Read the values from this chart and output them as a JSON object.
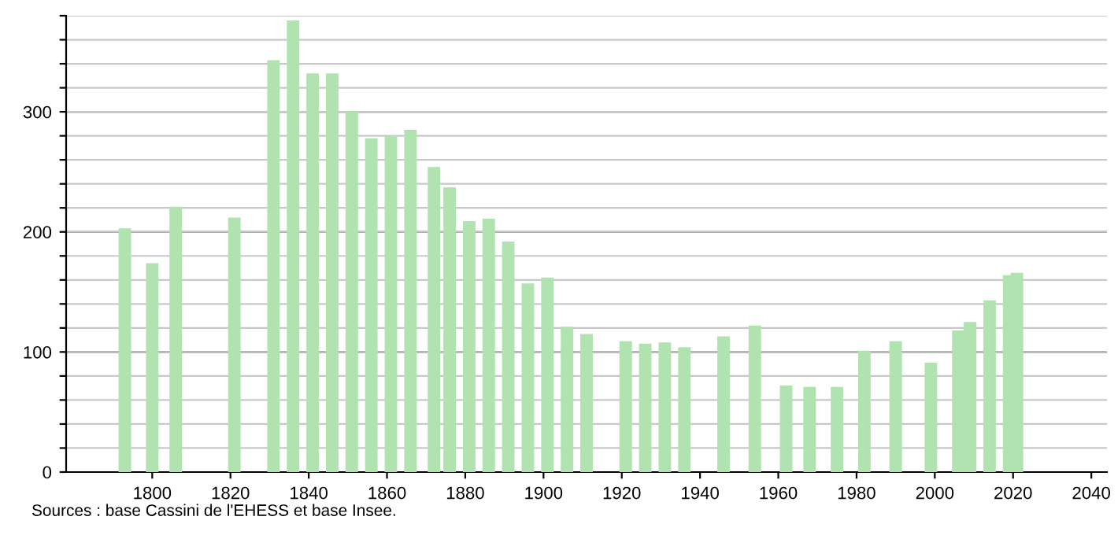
{
  "chart_data": {
    "type": "bar",
    "x": [
      1793,
      1800,
      1806,
      1821,
      1831,
      1836,
      1841,
      1846,
      1851,
      1856,
      1861,
      1866,
      1872,
      1876,
      1881,
      1886,
      1891,
      1896,
      1901,
      1906,
      1911,
      1921,
      1926,
      1931,
      1936,
      1946,
      1954,
      1962,
      1968,
      1975,
      1982,
      1990,
      1999,
      2006,
      2009,
      2014,
      2019,
      2021
    ],
    "values": [
      203,
      174,
      221,
      212,
      343,
      376,
      332,
      332,
      300,
      278,
      280,
      285,
      254,
      237,
      209,
      211,
      192,
      157,
      162,
      121,
      115,
      109,
      107,
      108,
      104,
      113,
      122,
      72,
      71,
      71,
      101,
      109,
      91,
      118,
      125,
      143,
      164,
      166
    ],
    "color": "#b1e3b1",
    "xlim": [
      1778,
      2044
    ],
    "xticks": [
      1800,
      1820,
      1840,
      1860,
      1880,
      1900,
      1920,
      1940,
      1960,
      1980,
      2000,
      2020,
      2040
    ],
    "ylim": [
      0,
      380
    ],
    "yticks": [
      0,
      {
        "value": 20,
        "label": null
      },
      {
        "value": 40,
        "label": null
      },
      {
        "value": 60,
        "label": null
      },
      {
        "value": 80,
        "label": null
      },
      100,
      {
        "value": 120,
        "label": null
      },
      {
        "value": 140,
        "label": null
      },
      {
        "value": 160,
        "label": null
      },
      {
        "value": 180,
        "label": null
      },
      200,
      {
        "value": 220,
        "label": null
      },
      {
        "value": 240,
        "label": null
      },
      {
        "value": 260,
        "label": null
      },
      {
        "value": 280,
        "label": null
      },
      300,
      {
        "value": 320,
        "label": null
      },
      {
        "value": 340,
        "label": null
      },
      {
        "value": 360,
        "label": null
      },
      {
        "value": 380,
        "label": null
      }
    ],
    "grid": "y",
    "annotations": [
      "Sources : base Cassini de l'EHESS et base Insee."
    ]
  }
}
